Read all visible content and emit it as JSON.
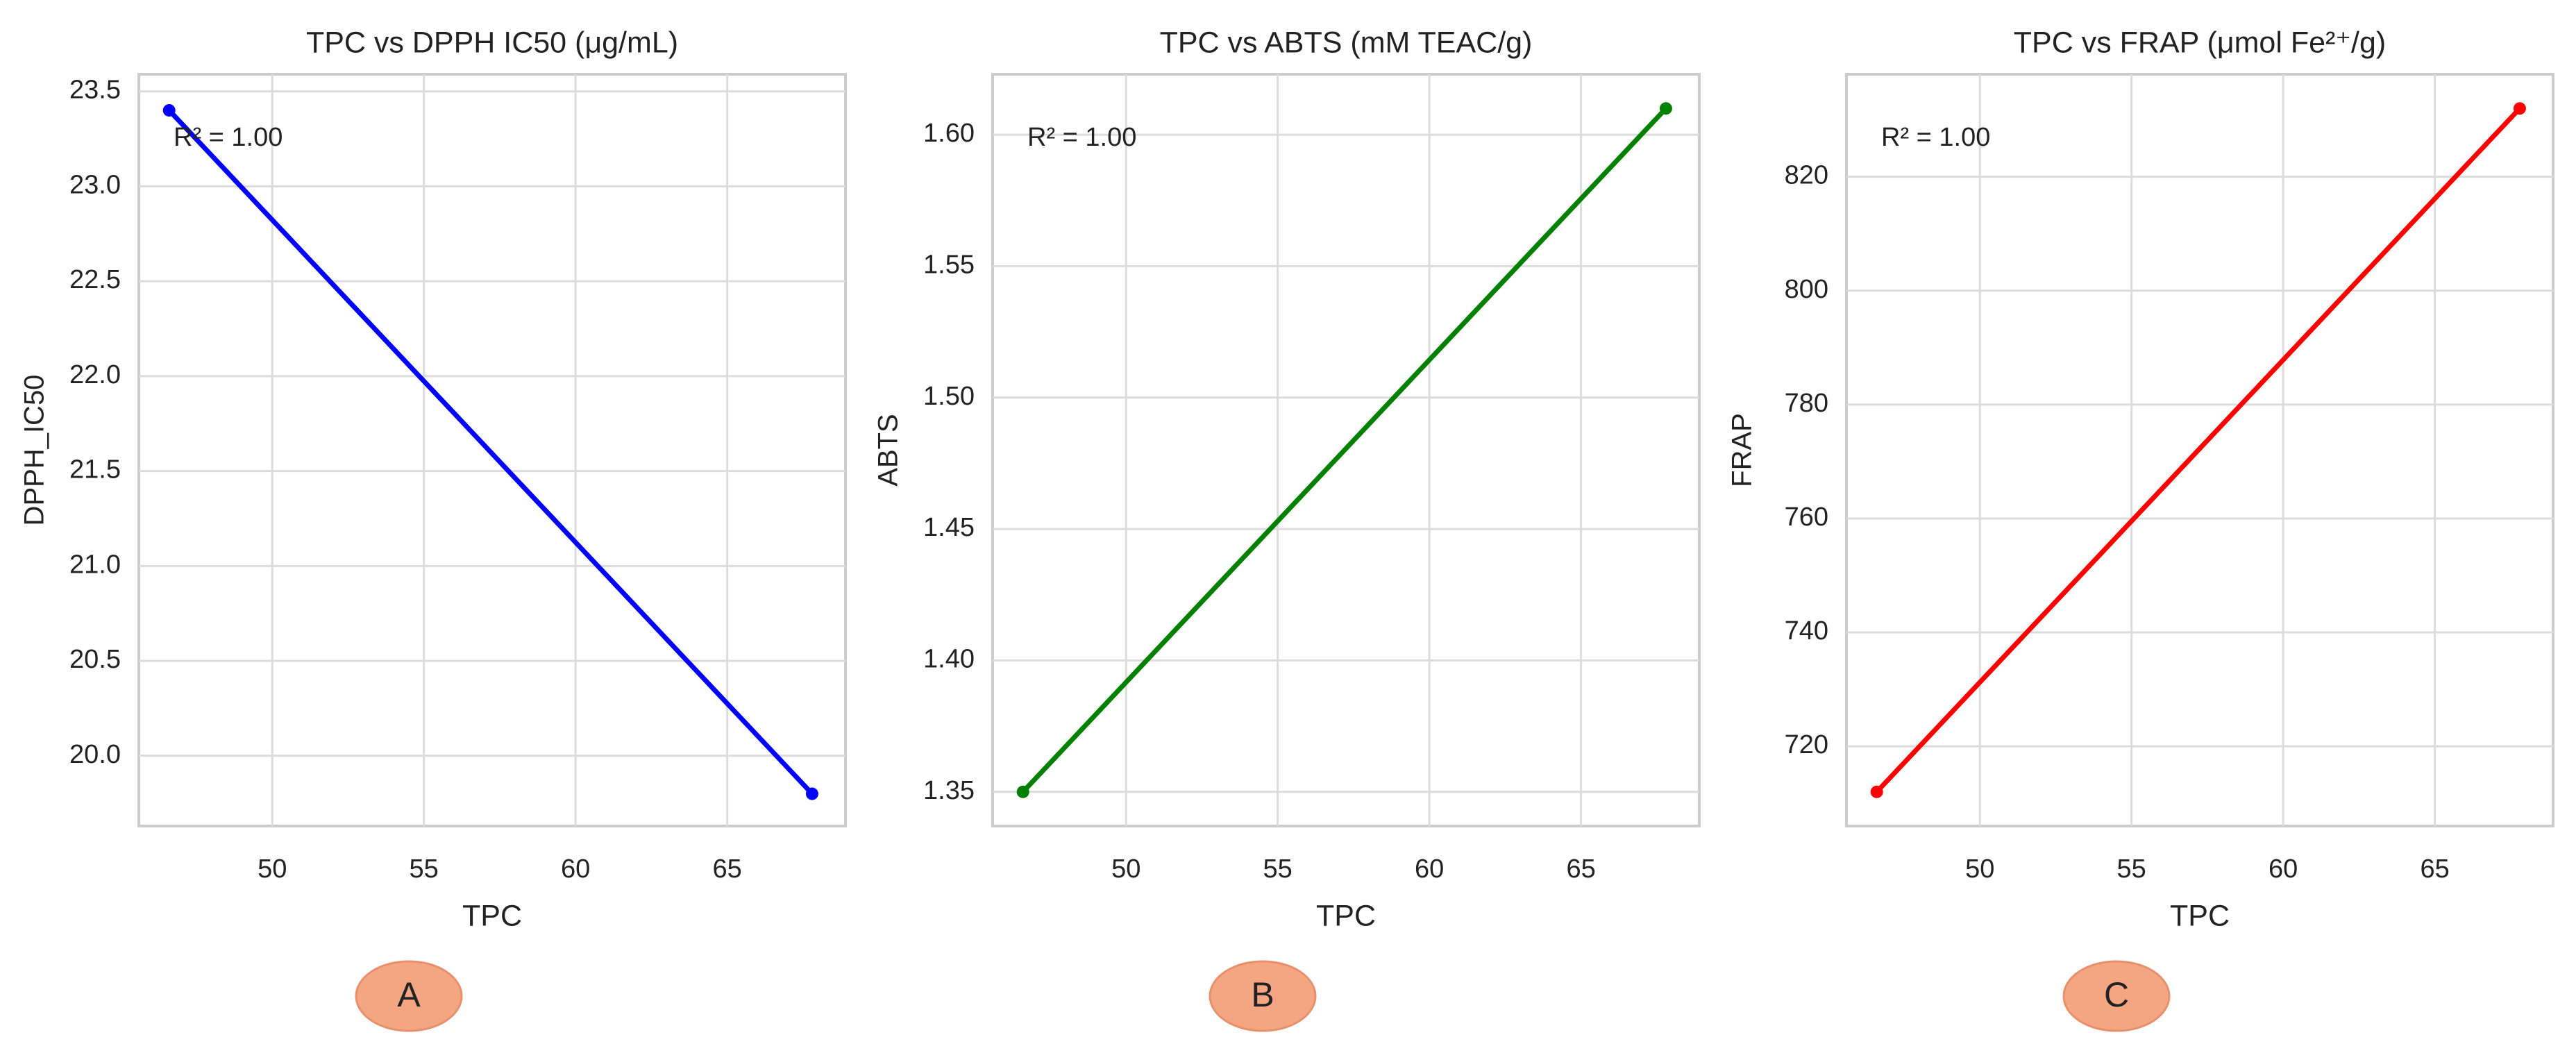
{
  "chart_data": [
    {
      "type": "line",
      "title": "TPC vs DPPH IC50 (μg/mL)",
      "x_label": "TPC",
      "y_label": "DPPH_IC50",
      "annotation": "R² = 1.00",
      "panel_label": "A",
      "x": [
        46.6,
        67.8
      ],
      "series": [
        {
          "name": "DPPH_IC50",
          "color": "#0000ff",
          "values": [
            23.4,
            19.8
          ]
        }
      ],
      "xlim": [
        45.6,
        68.9
      ],
      "ylim": [
        19.63,
        23.59
      ],
      "xticks": [
        50,
        55,
        60,
        65
      ],
      "yticks": [
        {
          "value": 20,
          "label": "20.0"
        },
        20.5,
        {
          "value": 21,
          "label": "21.0"
        },
        21.5,
        {
          "value": 22,
          "label": "22.0"
        },
        22.5,
        {
          "value": 23,
          "label": "23.0"
        },
        23.5
      ],
      "grid": true
    },
    {
      "type": "line",
      "title": "TPC vs ABTS (mM TEAC/g)",
      "x_label": "TPC",
      "y_label": "ABTS",
      "annotation": "R² = 1.00",
      "panel_label": "B",
      "x": [
        46.6,
        67.8
      ],
      "series": [
        {
          "name": "ABTS",
          "color": "#008000",
          "values": [
            1.35,
            1.61
          ]
        }
      ],
      "xlim": [
        45.6,
        68.9
      ],
      "ylim": [
        1.337,
        1.623
      ],
      "xticks": [
        50,
        55,
        60,
        65
      ],
      "yticks": [
        1.35,
        {
          "value": 1.4,
          "label": "1.40"
        },
        1.45,
        {
          "value": 1.5,
          "label": "1.50"
        },
        1.55,
        {
          "value": 1.6,
          "label": "1.60"
        }
      ],
      "grid": true
    },
    {
      "type": "line",
      "title": "TPC vs FRAP (μmol Fe²⁺/g)",
      "x_label": "TPC",
      "y_label": "FRAP",
      "annotation": "R² = 1.00",
      "panel_label": "C",
      "x": [
        46.6,
        67.8
      ],
      "series": [
        {
          "name": "FRAP",
          "color": "#ff0000",
          "values": [
            712,
            832
          ]
        }
      ],
      "xlim": [
        45.6,
        68.9
      ],
      "ylim": [
        706,
        838
      ],
      "xticks": [
        50,
        55,
        60,
        65
      ],
      "yticks": [
        720,
        740,
        760,
        780,
        800,
        820
      ],
      "grid": true
    }
  ]
}
